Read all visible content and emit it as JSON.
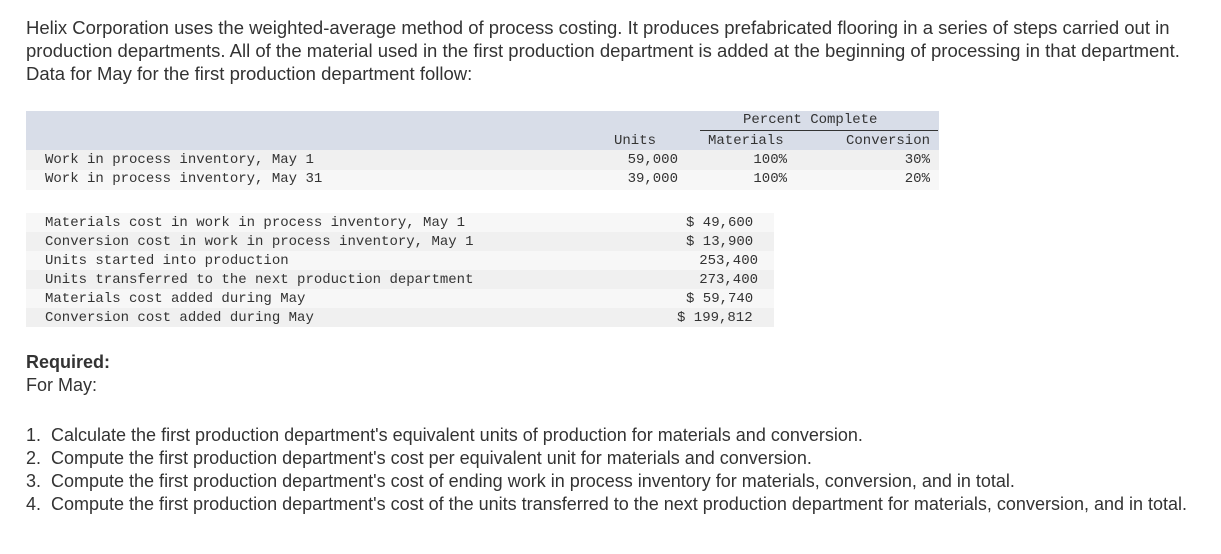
{
  "intro": "Helix Corporation uses the weighted-average method of process costing. It produces prefabricated flooring in a series of steps carried out in production departments. All of the material used in the first production department is added at the beginning of processing in that department. Data for May for the first production department follow:",
  "table1": {
    "group_header": "Percent Complete",
    "col_units": "Units",
    "col_materials": "Materials",
    "col_conversion": "Conversion",
    "rows": [
      {
        "label": "Work in process inventory, May 1",
        "units": "59,000",
        "materials": "100%",
        "conversion": "30%"
      },
      {
        "label": "Work in process inventory, May 31",
        "units": "39,000",
        "materials": "100%",
        "conversion": "20%"
      }
    ]
  },
  "table2": {
    "rows": [
      {
        "label": "Materials cost in work in process inventory, May 1",
        "value": "$ 49,600"
      },
      {
        "label": "Conversion cost in work in process inventory, May 1",
        "value": "$ 13,900"
      },
      {
        "label": "Units started into production",
        "value": "253,400"
      },
      {
        "label": "Units transferred to the next production department",
        "value": "273,400"
      },
      {
        "label": "Materials cost added during May",
        "value": "$ 59,740"
      },
      {
        "label": "Conversion cost added during May",
        "value": "$ 199,812"
      }
    ]
  },
  "required": {
    "label": "Required:",
    "sub": "For May:",
    "items": [
      {
        "num": "1.",
        "text": "Calculate the first production department's equivalent units of production for materials and conversion."
      },
      {
        "num": "2.",
        "text": "Compute the first production department's cost per equivalent unit for materials and conversion."
      },
      {
        "num": "3.",
        "text": "Compute the first production department's cost of ending work in process inventory for materials, conversion, and in total."
      },
      {
        "num": "4.",
        "text": "Compute the first production department's cost of the units transferred to the next production department for materials, conversion, and in total."
      }
    ]
  }
}
